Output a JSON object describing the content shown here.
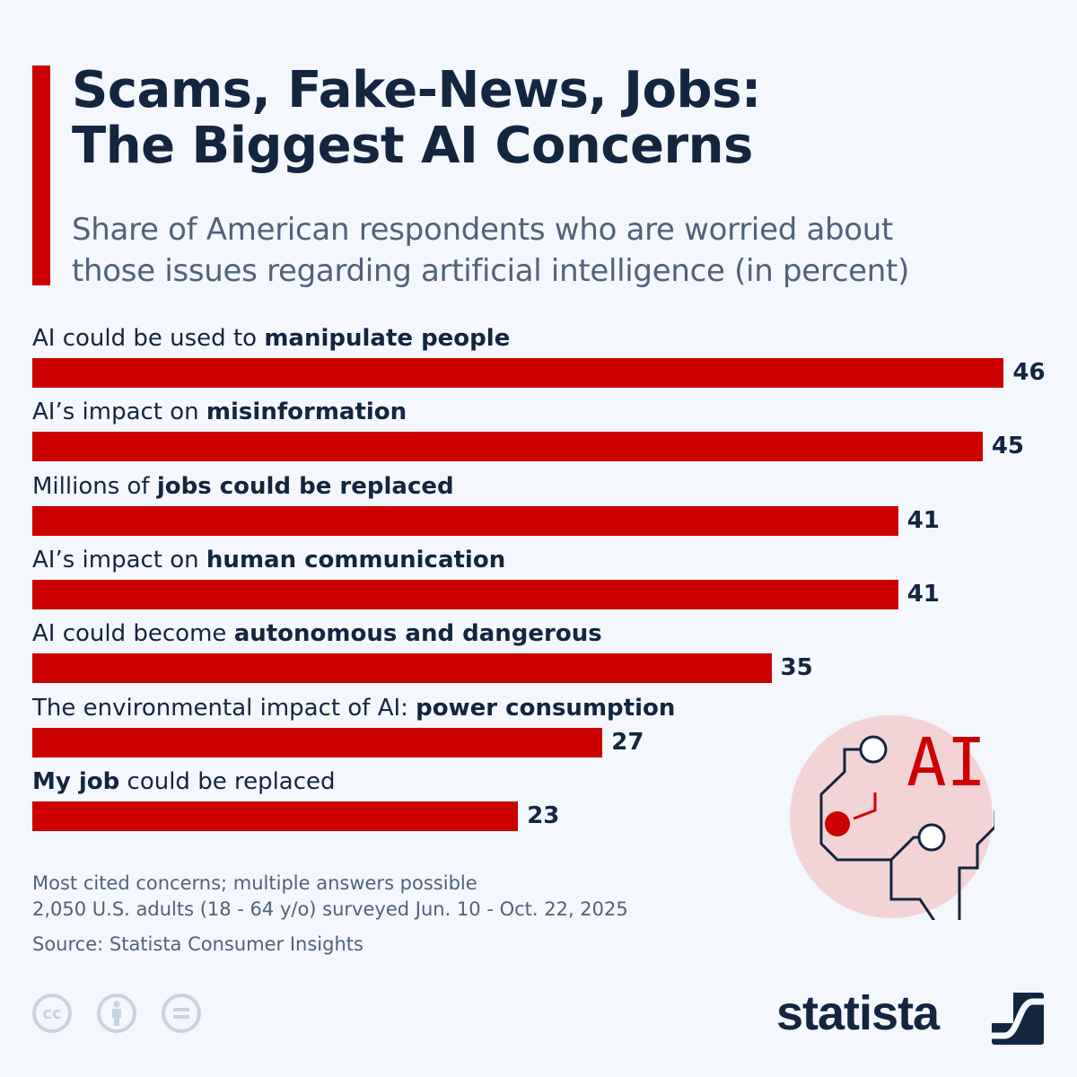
{
  "header": {
    "title_line1": "Scams, Fake-News, Jobs:",
    "title_line2": "The Biggest AI Concerns",
    "subtitle_line1": "Share of American respondents who are worried about",
    "subtitle_line2": "those issues regarding artificial intelligence (in percent)"
  },
  "chart_data": {
    "type": "bar",
    "orientation": "horizontal",
    "title": "Scams, Fake-News, Jobs: The Biggest AI Concerns",
    "subtitle": "Share of American respondents who are worried about those issues regarding artificial intelligence (in percent)",
    "categories": [
      "AI could be used to manipulate people",
      "AI's impact on misinformation",
      "Millions of jobs could be replaced",
      "AI's impact on human communication",
      "AI could become autonomous and dangerous",
      "The environmental impact of AI: power consumption",
      "My job could be replaced"
    ],
    "values": [
      46,
      45,
      41,
      41,
      35,
      27,
      23
    ],
    "xlabel": "",
    "ylabel": "percent",
    "grid": false,
    "legend": "none",
    "bar_color": "#cc0000"
  },
  "bars": [
    {
      "pre": "AI could be used to ",
      "bold": "manipulate people",
      "post": "",
      "value": "46"
    },
    {
      "pre": "AI’s impact on ",
      "bold": "misinformation",
      "post": "",
      "value": "45"
    },
    {
      "pre": "Millions of ",
      "bold": "jobs could be replaced",
      "post": "",
      "value": "41"
    },
    {
      "pre": "AI’s impact on ",
      "bold": "human communication",
      "post": "",
      "value": "41"
    },
    {
      "pre": "AI could become ",
      "bold": "autonomous and dangerous",
      "post": "",
      "value": "35"
    },
    {
      "pre": "The environmental impact of AI: ",
      "bold": "power consumption",
      "post": "",
      "value": "27"
    },
    {
      "pre": "",
      "bold": "My job",
      "post": " could be replaced",
      "value": "23"
    }
  ],
  "footer": {
    "note1": "Most cited concerns; multiple answers possible",
    "note2": "2,050 U.S. adults (18 - 64 y/o) surveyed Jun. 10 - Oct. 22, 2025",
    "source": "Source: Statista Consumer Insights",
    "brand": "statista",
    "cc_label": "cc",
    "icon_text": "AI"
  }
}
